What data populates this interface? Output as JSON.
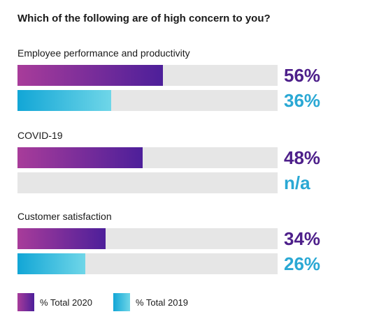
{
  "chart_data": {
    "type": "bar",
    "orientation": "horizontal",
    "title": "Which of the following are of high concern to you?",
    "categories": [
      "Employee performance and productivity",
      "COVID-19",
      "Customer satisfaction"
    ],
    "series": [
      {
        "name": "% Total 2020",
        "values": [
          56,
          48,
          34
        ],
        "labels": [
          "56%",
          "48%",
          "34%"
        ],
        "color": "#4d1f9a"
      },
      {
        "name": "% Total 2019",
        "values": [
          36,
          null,
          26
        ],
        "labels": [
          "36%",
          "n/a",
          "26%"
        ],
        "color": "#2aa8d4"
      }
    ],
    "xlim": [
      0,
      100
    ],
    "grid": false,
    "legend_position": "bottom-left"
  }
}
